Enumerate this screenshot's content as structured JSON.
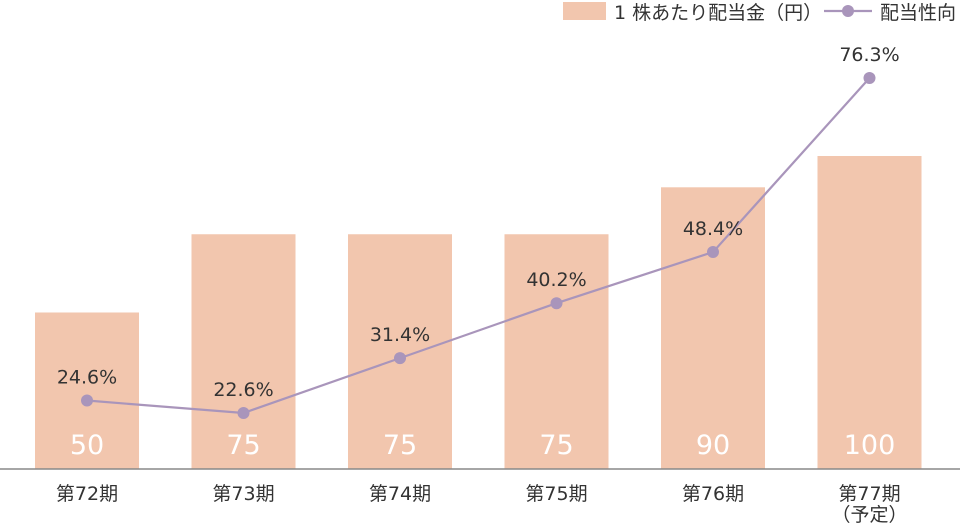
{
  "chart_data": {
    "type": "bar",
    "categories": [
      "第72期",
      "第73期",
      "第74期",
      "第75期",
      "第76期",
      "第77期"
    ],
    "category_sublabels": [
      "",
      "",
      "",
      "",
      "",
      "（予定）"
    ],
    "series": [
      {
        "name": "1 株あたり配当金（円）",
        "type": "bar",
        "values": [
          50,
          75,
          75,
          75,
          90,
          100
        ],
        "labels": [
          "50",
          "75",
          "75",
          "75",
          "90",
          "100"
        ],
        "color": "#f2c6ae"
      },
      {
        "name": "配当性向",
        "type": "line",
        "values": [
          24.6,
          22.6,
          31.4,
          40.2,
          48.4,
          76.3
        ],
        "labels": [
          "24.6%",
          "22.6%",
          "31.4%",
          "40.2%",
          "48.4%",
          "76.3%"
        ],
        "color": "#a995bb"
      }
    ],
    "bar_axis_range": [
      0,
      100
    ],
    "line_axis_range": [
      19,
      78
    ],
    "grid": false,
    "legend_position": "top-right"
  }
}
